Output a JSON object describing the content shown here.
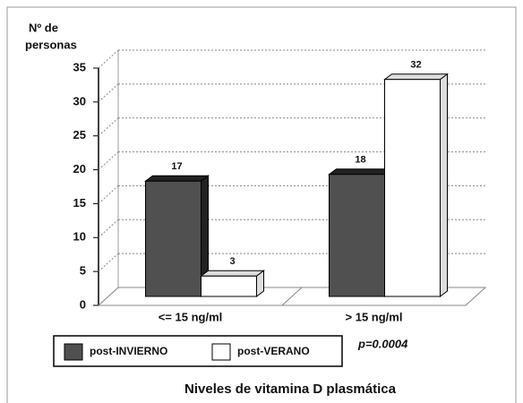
{
  "chart_data": {
    "type": "bar3d",
    "ylabel_lines": [
      "Nº de",
      "personas"
    ],
    "xlabel": "Niveles de vitamina D plasmática",
    "annotation": "p=0.0004",
    "categories": [
      "<= 15 ng/ml",
      "> 15 ng/ml"
    ],
    "series": [
      {
        "name": "post-INVIERNO",
        "color": "#505050",
        "values": [
          17,
          18
        ]
      },
      {
        "name": "post-VERANO",
        "color": "#ffffff",
        "values": [
          3,
          32
        ]
      }
    ],
    "ylim": [
      0,
      35
    ],
    "yticks": [
      0,
      5,
      10,
      15,
      20,
      25,
      30,
      35
    ],
    "grid": true,
    "legend": "bottom-left"
  }
}
